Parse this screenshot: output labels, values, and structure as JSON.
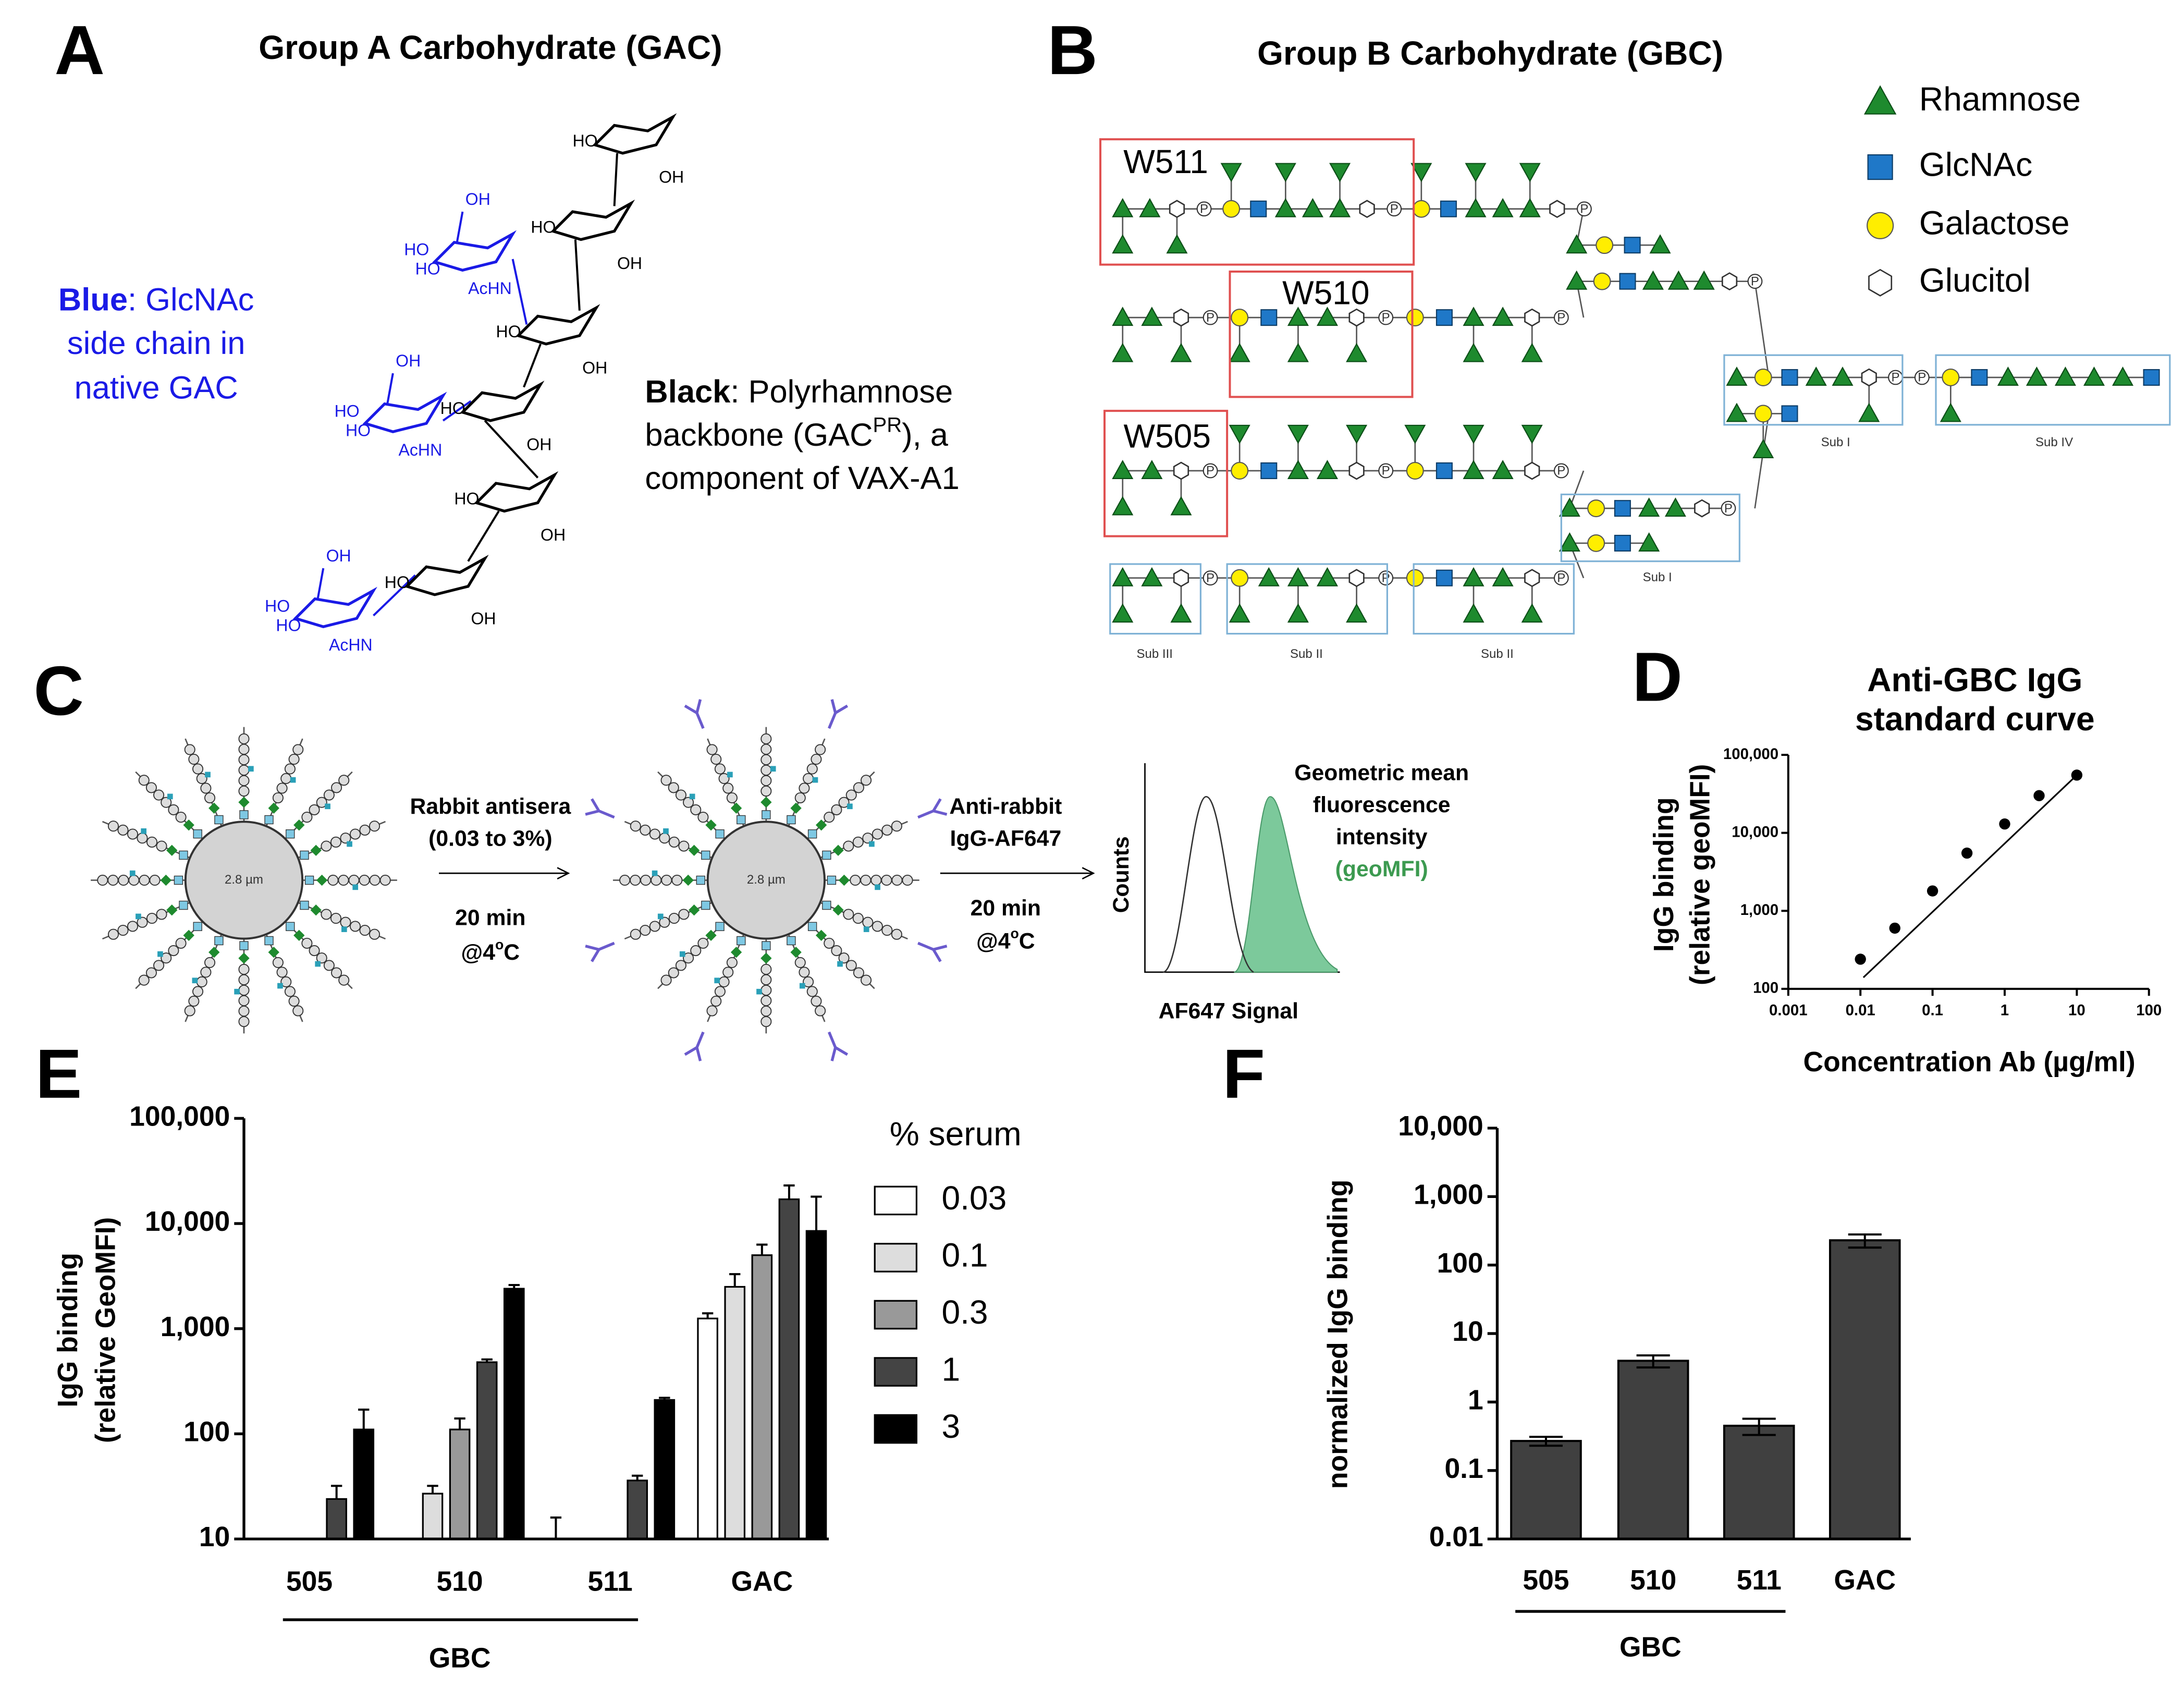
{
  "panels": {
    "A": {
      "letter": "A",
      "title": "Group A Carbohydrate (GAC)",
      "blue_note": {
        "bold": "Blue",
        "lines": [
          ": GlcNAc",
          "side chain in",
          "native GAC"
        ]
      },
      "black_note": {
        "bold": "Black",
        "line1": ": Polyrhamnose",
        "line2_pre": "backbone (GAC",
        "line2_sup": "PR",
        "line2_post": "), a",
        "line3": "component of VAX-A1"
      },
      "structure_labels": [
        "HO",
        "OH",
        "HO",
        "OH",
        "HO",
        "OH",
        "HO",
        "OH",
        "HO",
        "OH",
        "HO",
        "OH",
        "OH",
        "HO",
        "HO",
        "AcHN",
        "OH",
        "HO",
        "HO",
        "AcHN",
        "OH",
        "HO",
        "HO",
        "AcHN"
      ]
    },
    "B": {
      "letter": "B",
      "title": "Group B Carbohydrate (GBC)",
      "legend": [
        "Rhamnose",
        "GlcNAc",
        "Galactose",
        "Glucitol"
      ],
      "phosphate": "P",
      "boxes": [
        "W511",
        "W510",
        "W505"
      ],
      "subunits": [
        "Sub III",
        "Sub II",
        "Sub II",
        "Sub I",
        "Sub I",
        "Sub IV"
      ]
    },
    "C": {
      "letter": "C",
      "bead_size": "2.8 µm",
      "step1": [
        "Rabbit antisera",
        "(0.03 to 3%)"
      ],
      "step2": [
        "Anti-rabbit",
        "IgG-AF647"
      ],
      "time": "20 min",
      "temp": {
        "pre": "@4",
        "sup": "o",
        "post": "C"
      },
      "y_label": "Counts",
      "x_label": "AF647 Signal",
      "annotation": [
        "Geometric mean",
        "fluorescence",
        "intensity",
        "(geoMFI)"
      ]
    },
    "D": {
      "letter": "D"
    },
    "E": {
      "letter": "E"
    },
    "F": {
      "letter": "F"
    }
  },
  "chart_data": [
    {
      "type": "scatter",
      "title": [
        "Anti-GBC IgG",
        "standard curve"
      ],
      "y_label": [
        "IgG binding",
        "(relative geoMFI)"
      ],
      "x_label": "Concentration Ab (µg/ml)",
      "x": [
        0.01,
        0.03,
        0.1,
        0.3,
        1,
        3,
        10
      ],
      "values": [
        240,
        600,
        1800,
        5500,
        13000,
        30000,
        55000
      ],
      "color": "#000000",
      "fit": {
        "x": [
          0.011,
          10
        ],
        "values": [
          140,
          55000
        ]
      },
      "log_x": true,
      "log_y": true,
      "xlim": [
        0.001,
        100
      ],
      "xticks": [
        0.001,
        0.01,
        0.1,
        1,
        10,
        100
      ],
      "ylim": [
        100,
        100000
      ],
      "yticks": [
        100,
        {
          "value": 1000,
          "label": "1,000"
        },
        {
          "value": 10000,
          "label": "10,000"
        },
        {
          "value": 100000,
          "label": "100,000"
        }
      ]
    },
    {
      "type": "bar",
      "y_label": [
        "IgG binding",
        "(relative GeoMFI)"
      ],
      "categories": [
        "505",
        "510",
        "511",
        "GAC"
      ],
      "group_label": "GBC",
      "legend_title": "% serum",
      "series": [
        {
          "name": "0.03",
          "color": "#ffffff",
          "values": [
            null,
            null,
            10,
            1250
          ],
          "errors": [
            null,
            null,
            6,
            150
          ]
        },
        {
          "name": "0.1",
          "color": "#dddddd",
          "values": [
            null,
            27,
            null,
            2500
          ],
          "errors": [
            null,
            5,
            null,
            800
          ]
        },
        {
          "name": "0.3",
          "color": "#999999",
          "values": [
            null,
            110,
            null,
            5000
          ],
          "errors": [
            null,
            30,
            null,
            1300
          ]
        },
        {
          "name": "1",
          "color": "#444444",
          "values": [
            24,
            480,
            36,
            17000
          ],
          "errors": [
            8,
            30,
            4,
            6000
          ]
        },
        {
          "name": "3",
          "color": "#000000",
          "values": [
            110,
            2400,
            210,
            8500
          ],
          "errors": [
            60,
            200,
            10,
            9500
          ]
        }
      ],
      "log_y": true,
      "ylim": [
        10,
        100000
      ],
      "yticks": [
        10,
        100,
        {
          "value": 1000,
          "label": "1,000"
        },
        {
          "value": 10000,
          "label": "10,000"
        },
        {
          "value": 100000,
          "label": "100,000"
        }
      ]
    },
    {
      "type": "bar",
      "y_label": "normalized IgG binding",
      "categories": [
        "505",
        "510",
        "511",
        "GAC"
      ],
      "group_label": "GBC",
      "values": [
        0.27,
        4,
        0.45,
        230
      ],
      "errors": [
        0.04,
        0.8,
        0.12,
        50
      ],
      "color": "#404040",
      "log_y": true,
      "ylim": [
        0.01,
        10000
      ],
      "yticks": [
        0.01,
        0.1,
        1,
        10,
        100,
        {
          "value": 1000,
          "label": "1,000"
        },
        {
          "value": 10000,
          "label": "10,000"
        }
      ]
    }
  ]
}
